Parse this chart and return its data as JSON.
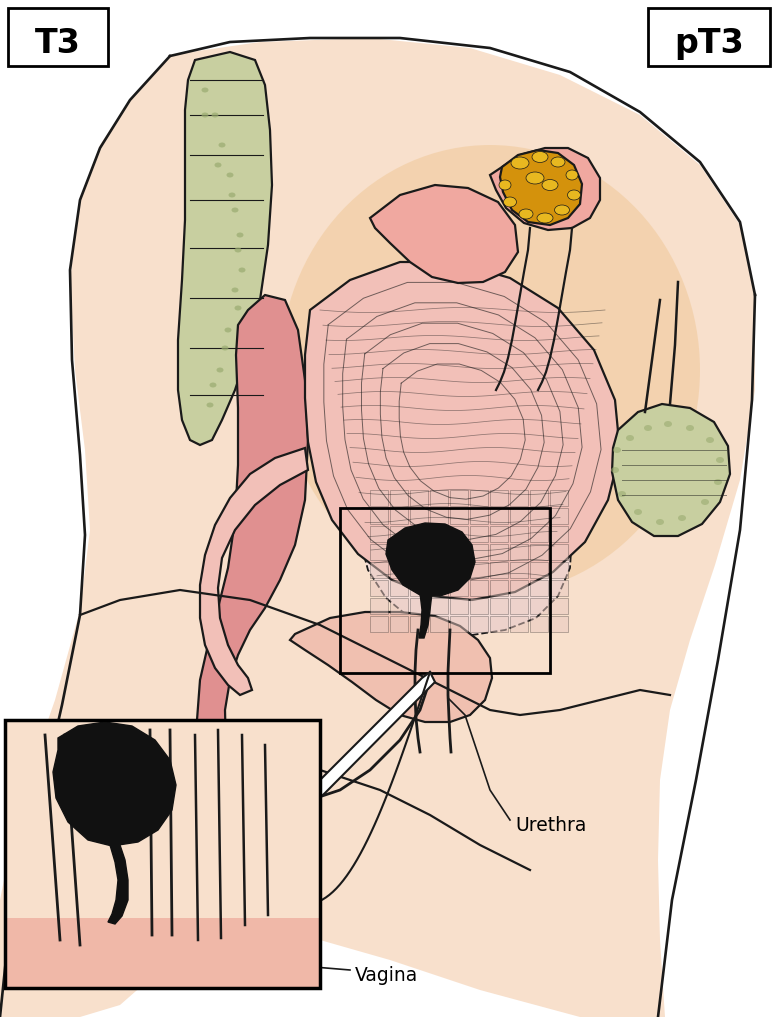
{
  "title_left": "T3",
  "title_right": "pT3",
  "label_urethra": "Urethra",
  "label_vagina": "Vagina",
  "bg_color": "#ffffff",
  "skin_light": "#f8e0cc",
  "skin_peach": "#f5cdb0",
  "skin_mid": "#f0c4a8",
  "skin_pink": "#e8a898",
  "outline_color": "#1a1a1a",
  "tumor_color": "#111111",
  "tissue_pink": "#e09090",
  "tissue_light_pink": "#f0c8c0",
  "bone_green": "#c8cfa0",
  "bone_spot": "#9aab70",
  "tumor_orange": "#d4920c",
  "tumor_yellow": "#e8b820",
  "bladder_pale": "#f4ddd8",
  "glow_peach": "#f0c898",
  "rectum_pink": "#e8b8b0",
  "inset_bg": "#f8e0cc"
}
